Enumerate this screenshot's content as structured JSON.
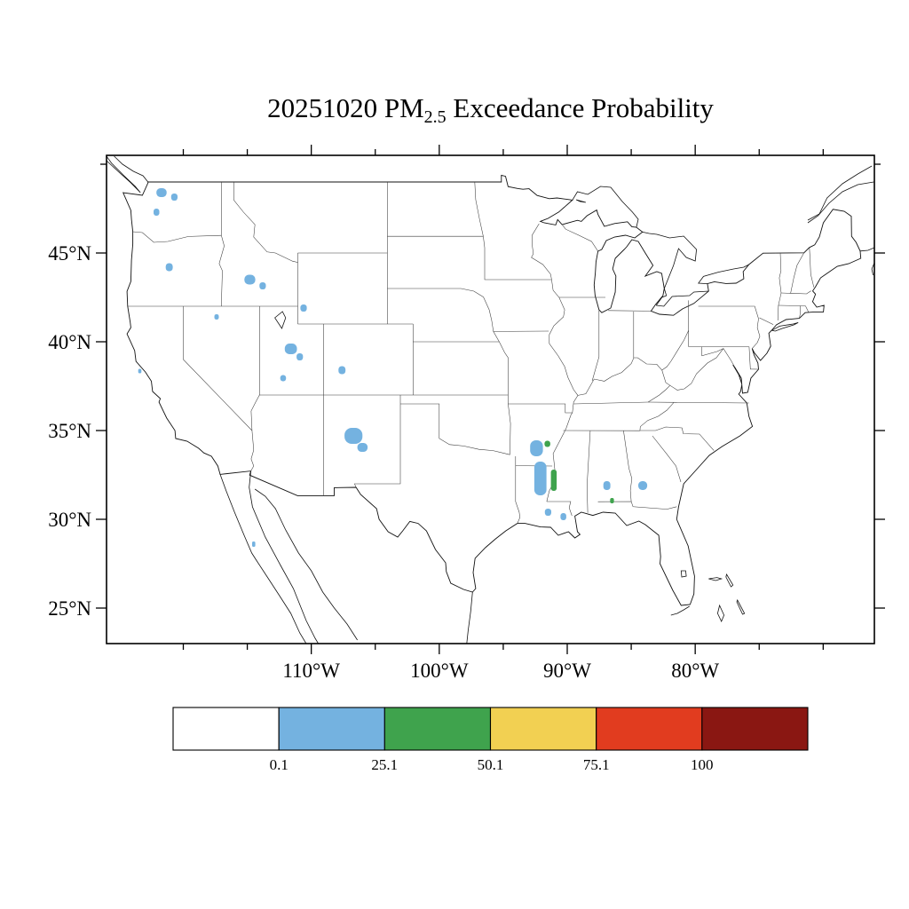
{
  "title": {
    "prefix": "20251020 PM",
    "subscript": "2.5",
    "suffix": " Exceedance Probability"
  },
  "axes": {
    "lat_ticks": [
      {
        "value": 25,
        "label": "25°N"
      },
      {
        "value": 30,
        "label": "30°N"
      },
      {
        "value": 35,
        "label": "35°N"
      },
      {
        "value": 40,
        "label": "40°N"
      },
      {
        "value": 45,
        "label": "45°N"
      }
    ],
    "lon_ticks": [
      {
        "value": -110,
        "label": "110°W"
      },
      {
        "value": -100,
        "label": "100°W"
      },
      {
        "value": -90,
        "label": "90°W"
      },
      {
        "value": -80,
        "label": "80°W"
      }
    ]
  },
  "colorbar": {
    "colors": [
      "#FFFFFF",
      "#74B2E0",
      "#3FA34D",
      "#F2D052",
      "#E13C1F",
      "#8A1712"
    ],
    "labels": [
      "0.1",
      "25.1",
      "50.1",
      "75.1",
      "100"
    ]
  },
  "chart_data": {
    "type": "heatmap",
    "title": "20251020 PM2.5 Exceedance Probability",
    "map_region": "contiguous United States",
    "units": "exceedance probability (%)",
    "lon_range": [
      -126,
      -66
    ],
    "lat_range": [
      23,
      50.5
    ],
    "legend_boundaries": [
      0.1,
      25.1,
      50.1,
      75.1,
      100
    ],
    "patches": [
      {
        "lon": -121.7,
        "lat": 48.4,
        "w": 0.8,
        "h": 0.5,
        "level": 1
      },
      {
        "lon": -120.7,
        "lat": 48.15,
        "w": 0.5,
        "h": 0.4,
        "level": 1
      },
      {
        "lon": -122.1,
        "lat": 47.3,
        "w": 0.45,
        "h": 0.4,
        "level": 1
      },
      {
        "lon": -121.1,
        "lat": 44.2,
        "w": 0.55,
        "h": 0.45,
        "level": 1
      },
      {
        "lon": -114.8,
        "lat": 43.5,
        "w": 0.85,
        "h": 0.55,
        "level": 1
      },
      {
        "lon": -113.8,
        "lat": 43.15,
        "w": 0.5,
        "h": 0.4,
        "level": 1
      },
      {
        "lon": -117.4,
        "lat": 41.4,
        "w": 0.35,
        "h": 0.3,
        "level": 1
      },
      {
        "lon": -110.6,
        "lat": 41.9,
        "w": 0.5,
        "h": 0.4,
        "level": 1
      },
      {
        "lon": -111.6,
        "lat": 39.6,
        "w": 0.95,
        "h": 0.6,
        "level": 1
      },
      {
        "lon": -110.9,
        "lat": 39.15,
        "w": 0.5,
        "h": 0.4,
        "level": 1
      },
      {
        "lon": -112.2,
        "lat": 37.95,
        "w": 0.45,
        "h": 0.35,
        "level": 1
      },
      {
        "lon": -107.6,
        "lat": 38.4,
        "w": 0.55,
        "h": 0.45,
        "level": 1
      },
      {
        "lon": -106.7,
        "lat": 34.7,
        "w": 1.4,
        "h": 0.9,
        "level": 1
      },
      {
        "lon": -106.0,
        "lat": 34.05,
        "w": 0.8,
        "h": 0.5,
        "level": 1
      },
      {
        "lon": -123.4,
        "lat": 38.35,
        "w": 0.25,
        "h": 0.25,
        "level": 1
      },
      {
        "lon": -114.5,
        "lat": 28.6,
        "w": 0.25,
        "h": 0.3,
        "level": 1
      },
      {
        "lon": -92.4,
        "lat": 34.0,
        "w": 1.0,
        "h": 0.9,
        "level": 1
      },
      {
        "lon": -91.55,
        "lat": 34.25,
        "w": 0.45,
        "h": 0.35,
        "level": 2
      },
      {
        "lon": -92.1,
        "lat": 32.3,
        "w": 0.95,
        "h": 1.9,
        "level": 1
      },
      {
        "lon": -91.05,
        "lat": 32.2,
        "w": 0.45,
        "h": 1.2,
        "level": 2
      },
      {
        "lon": -91.5,
        "lat": 30.4,
        "w": 0.5,
        "h": 0.4,
        "level": 1
      },
      {
        "lon": -90.3,
        "lat": 30.15,
        "w": 0.45,
        "h": 0.4,
        "level": 1
      },
      {
        "lon": -86.9,
        "lat": 31.9,
        "w": 0.55,
        "h": 0.5,
        "level": 1
      },
      {
        "lon": -86.5,
        "lat": 31.05,
        "w": 0.3,
        "h": 0.3,
        "level": 2
      },
      {
        "lon": -84.1,
        "lat": 31.9,
        "w": 0.7,
        "h": 0.5,
        "level": 1
      }
    ]
  }
}
